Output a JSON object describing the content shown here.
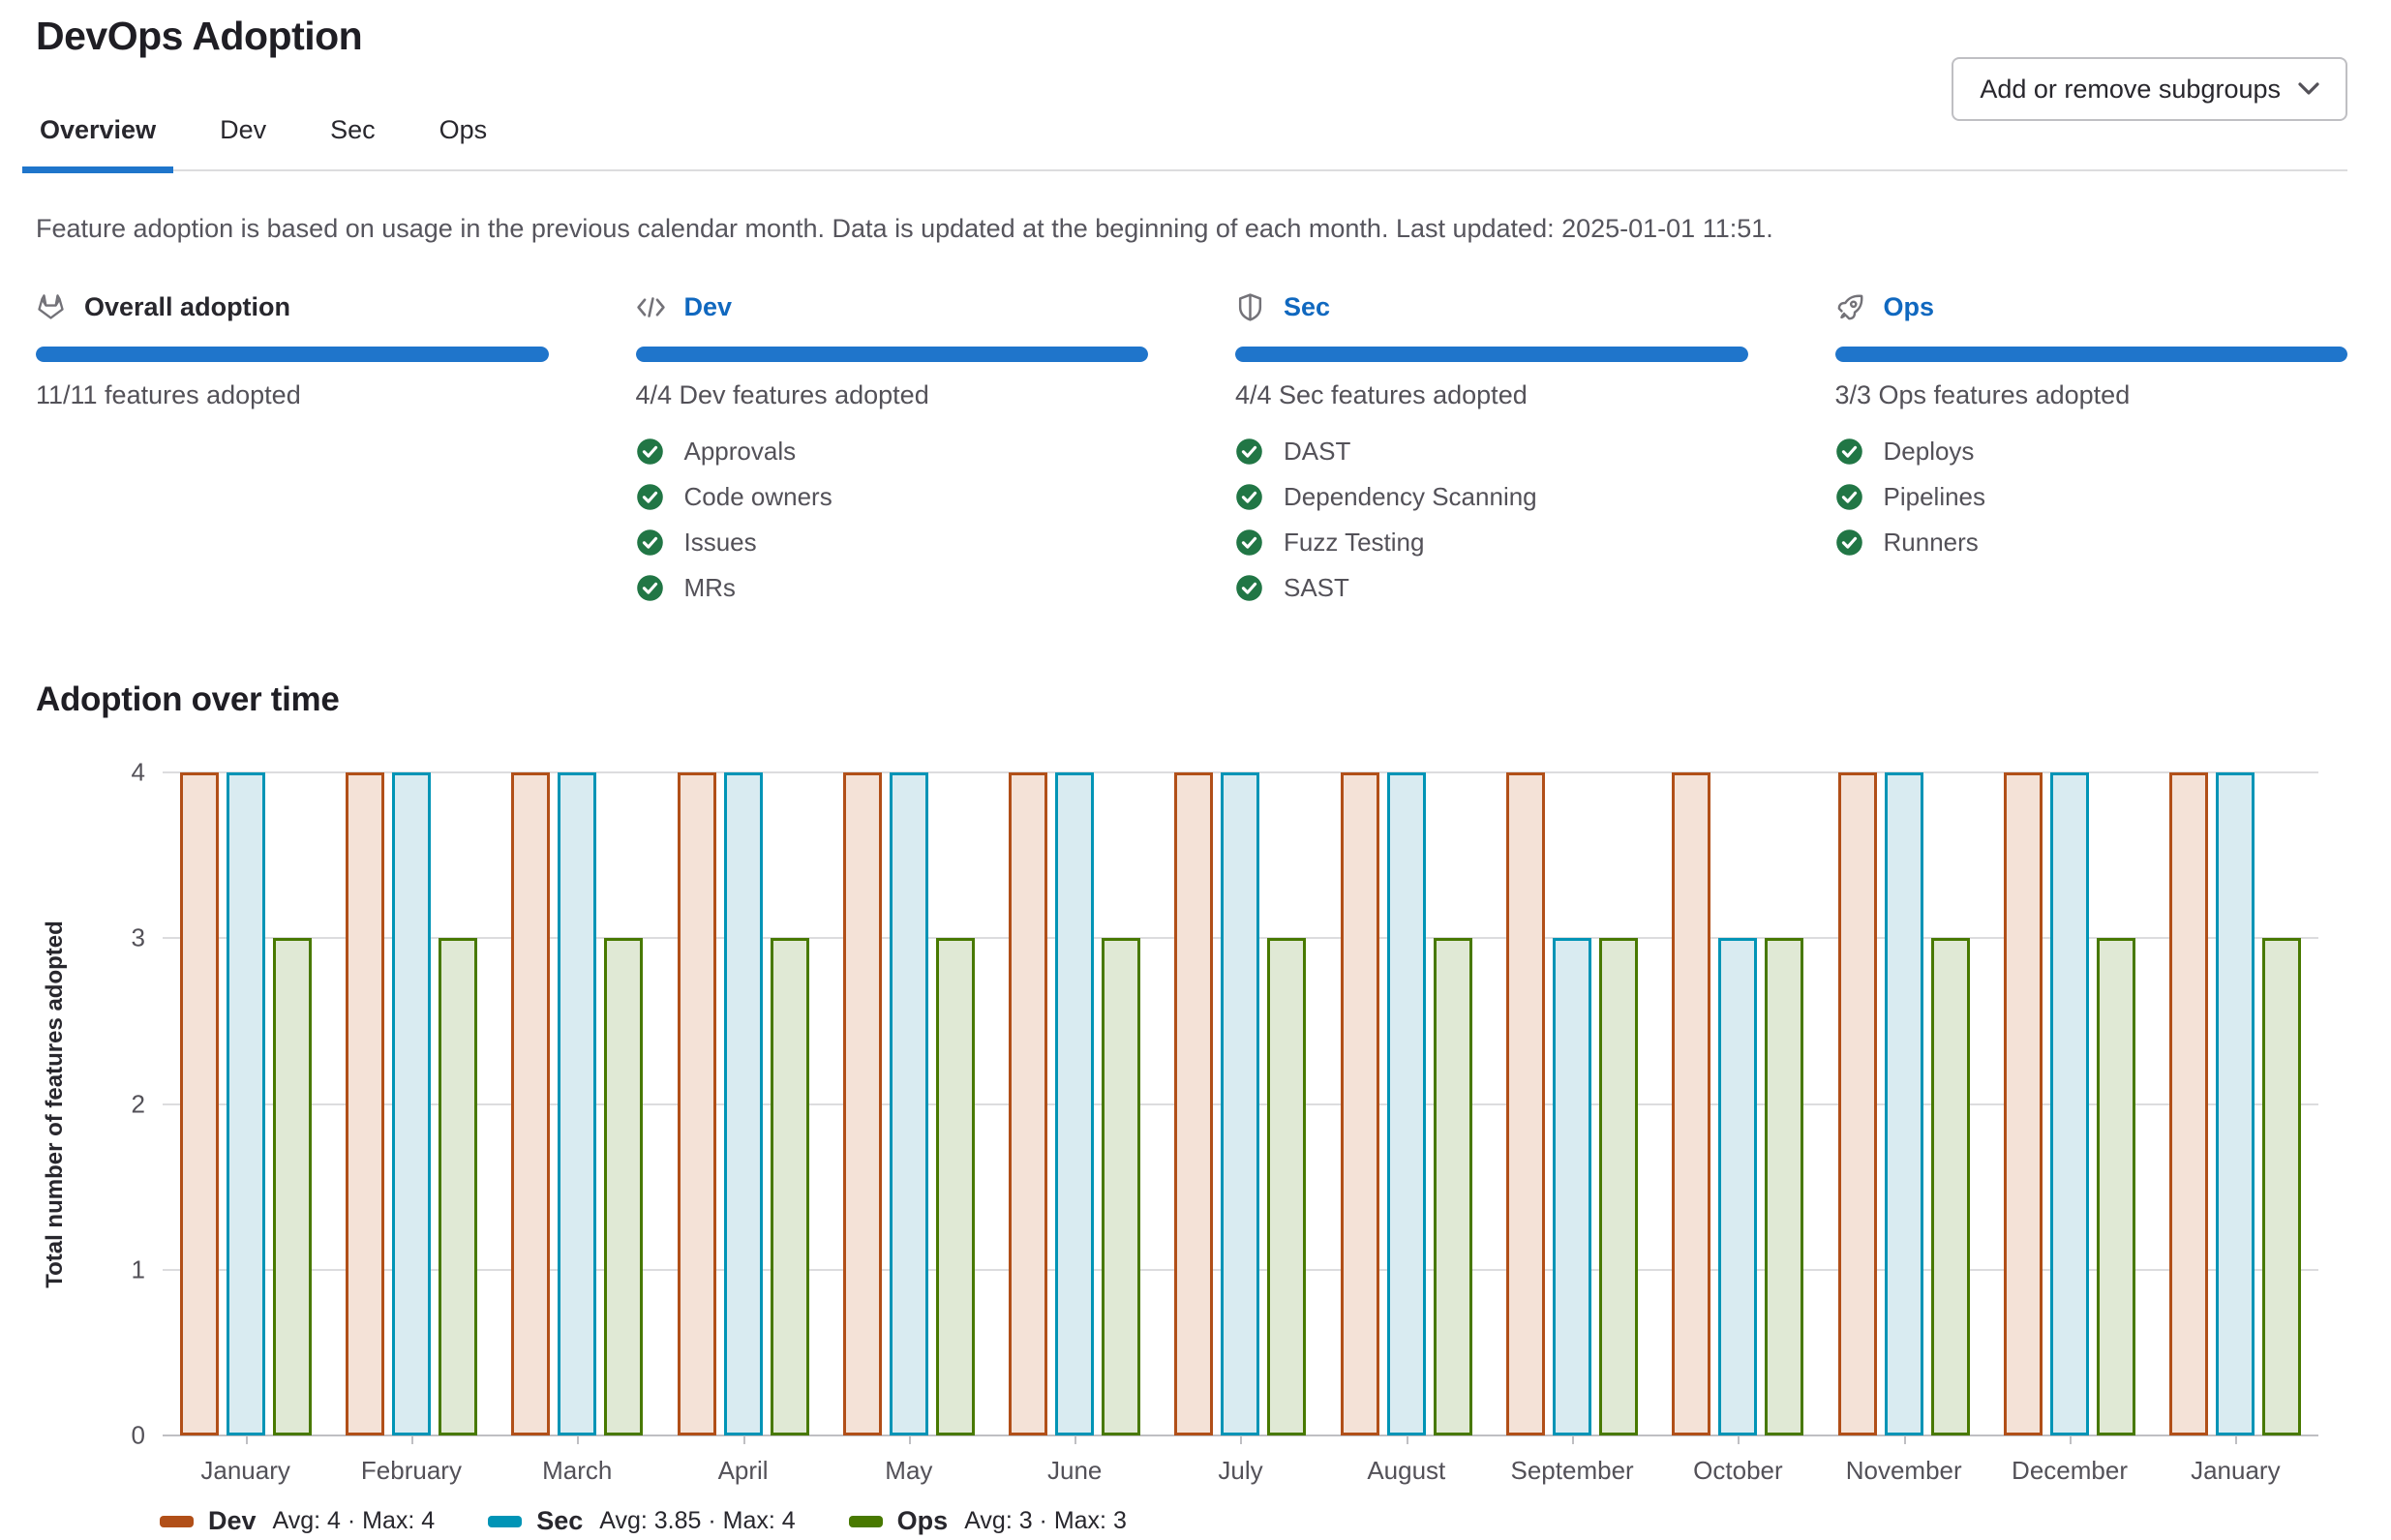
{
  "page": {
    "title": "DevOps Adoption"
  },
  "tabs": [
    {
      "label": "Overview",
      "active": true
    },
    {
      "label": "Dev",
      "active": false
    },
    {
      "label": "Sec",
      "active": false
    },
    {
      "label": "Ops",
      "active": false
    }
  ],
  "toolbar": {
    "subgroups_button": "Add or remove subgroups"
  },
  "info_text": "Feature adoption is based on usage in the previous calendar month. Data is updated at the beginning of each month. Last updated: 2025-01-01 11:51.",
  "cards": [
    {
      "icon": "tanuki-icon",
      "title": "Overall adoption",
      "is_link": false,
      "progress_percent": 100,
      "subtitle": "11/11 features adopted",
      "features": []
    },
    {
      "icon": "code-icon",
      "title": "Dev",
      "is_link": true,
      "progress_percent": 100,
      "subtitle": "4/4 Dev features adopted",
      "features": [
        "Approvals",
        "Code owners",
        "Issues",
        "MRs"
      ]
    },
    {
      "icon": "shield-icon",
      "title": "Sec",
      "is_link": true,
      "progress_percent": 100,
      "subtitle": "4/4 Sec features adopted",
      "features": [
        "DAST",
        "Dependency Scanning",
        "Fuzz Testing",
        "SAST"
      ]
    },
    {
      "icon": "rocket-icon",
      "title": "Ops",
      "is_link": true,
      "progress_percent": 100,
      "subtitle": "3/3 Ops features adopted",
      "features": [
        "Deploys",
        "Pipelines",
        "Runners"
      ]
    }
  ],
  "section": {
    "title": "Adoption over time"
  },
  "chart_data": {
    "type": "bar",
    "title": "Adoption over time",
    "xlabel": "",
    "ylabel": "Total number of features adopted",
    "ylim": [
      0,
      4
    ],
    "yticks": [
      0,
      1,
      2,
      3,
      4
    ],
    "grid": true,
    "legend_position": "bottom",
    "categories": [
      "January",
      "February",
      "March",
      "April",
      "May",
      "June",
      "July",
      "August",
      "September",
      "October",
      "November",
      "December",
      "January"
    ],
    "series": [
      {
        "name": "Dev",
        "stroke": "#b14f18",
        "fill": "#f4e2d7",
        "values": [
          4,
          4,
          4,
          4,
          4,
          4,
          4,
          4,
          4,
          4,
          4,
          4,
          4
        ],
        "legend_stats": "Avg: 4 · Max: 4"
      },
      {
        "name": "Sec",
        "stroke": "#0094b6",
        "fill": "#d9ebf1",
        "values": [
          4,
          4,
          4,
          4,
          4,
          4,
          4,
          4,
          3,
          3,
          4,
          4,
          4
        ],
        "legend_stats": "Avg: 3.85 · Max: 4"
      },
      {
        "name": "Ops",
        "stroke": "#487900",
        "fill": "#e0e9d5",
        "values": [
          3,
          3,
          3,
          3,
          3,
          3,
          3,
          3,
          3,
          3,
          3,
          3,
          3
        ],
        "legend_stats": "Avg: 3 · Max: 3"
      }
    ]
  },
  "colors": {
    "accent_blue": "#1f75cb",
    "link_blue": "#1068bf",
    "progress_blue": "#1f75cb",
    "check_green": "#217645",
    "icon_gray": "#737278"
  }
}
